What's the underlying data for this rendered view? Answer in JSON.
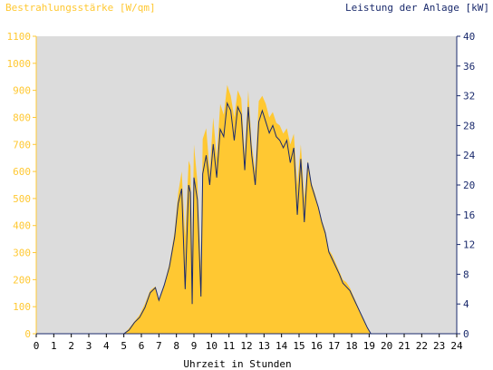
{
  "chart_data": {
    "type": "area",
    "left_axis_title": "Bestrahlungsstärke [W/qm]",
    "right_axis_title": "Leistung der Anlage [kW]",
    "xlabel": "Uhrzeit in Stunden",
    "x_ticks": [
      "0",
      "1",
      "2",
      "3",
      "4",
      "5",
      "6",
      "7",
      "8",
      "9",
      "10",
      "11",
      "12",
      "13",
      "14",
      "15",
      "16",
      "17",
      "18",
      "19",
      "20",
      "21",
      "22",
      "23",
      "24"
    ],
    "y_left_ticks": [
      "0",
      "100",
      "200",
      "300",
      "400",
      "500",
      "600",
      "700",
      "800",
      "900",
      "1000",
      "1100"
    ],
    "y_right_ticks": [
      "0",
      "4",
      "8",
      "12",
      "16",
      "20",
      "24",
      "28",
      "32",
      "36",
      "40"
    ],
    "xlim": [
      0,
      24
    ],
    "ylim_left": [
      0,
      1100
    ],
    "ylim_right": [
      0,
      40
    ],
    "grid": false,
    "colors": {
      "plot_background": "#dcdcdc",
      "irradiance_fill": "#ffc832",
      "power_line": "#1a2a6c",
      "left_axis_text": "#ffc832",
      "right_axis_text": "#1a2a6c",
      "x_axis_text": "#000000"
    },
    "series": [
      {
        "name": "Bestrahlungsstärke [W/qm]",
        "axis": "left",
        "style": "area",
        "x": [
          0,
          5.0,
          5.3,
          5.6,
          5.9,
          6.2,
          6.5,
          6.8,
          7.0,
          7.3,
          7.6,
          7.9,
          8.1,
          8.3,
          8.5,
          8.7,
          8.8,
          8.9,
          9.0,
          9.2,
          9.4,
          9.5,
          9.7,
          9.9,
          10.1,
          10.3,
          10.5,
          10.7,
          10.9,
          11.1,
          11.3,
          11.5,
          11.7,
          11.9,
          12.1,
          12.3,
          12.5,
          12.7,
          12.9,
          13.1,
          13.3,
          13.5,
          13.7,
          13.9,
          14.1,
          14.3,
          14.5,
          14.7,
          14.9,
          15.1,
          15.3,
          15.5,
          15.7,
          15.9,
          16.1,
          16.3,
          16.5,
          16.7,
          16.9,
          17.1,
          17.3,
          17.5,
          17.7,
          17.9,
          18.1,
          18.3,
          18.5,
          18.7,
          18.9,
          19.1,
          19.3,
          19.5,
          19.7,
          19.9,
          20.1,
          20.4,
          20.7,
          24
        ],
        "y": [
          0,
          0,
          20,
          45,
          70,
          110,
          160,
          175,
          120,
          180,
          260,
          380,
          520,
          600,
          360,
          640,
          620,
          280,
          700,
          560,
          230,
          720,
          760,
          600,
          800,
          650,
          850,
          810,
          920,
          880,
          800,
          900,
          870,
          660,
          900,
          700,
          600,
          860,
          880,
          850,
          800,
          820,
          780,
          770,
          740,
          760,
          700,
          740,
          550,
          700,
          500,
          640,
          560,
          520,
          470,
          420,
          380,
          310,
          290,
          260,
          230,
          200,
          190,
          170,
          140,
          110,
          80,
          50,
          20,
          0,
          0,
          0,
          0,
          0,
          0,
          0,
          0,
          0
        ]
      },
      {
        "name": "Leistung der Anlage [kW]",
        "axis": "right",
        "style": "line",
        "x": [
          0,
          5.0,
          5.3,
          5.6,
          5.9,
          6.2,
          6.5,
          6.8,
          7.0,
          7.3,
          7.6,
          7.9,
          8.1,
          8.3,
          8.5,
          8.7,
          8.8,
          8.9,
          9.0,
          9.2,
          9.4,
          9.5,
          9.7,
          9.9,
          10.1,
          10.3,
          10.5,
          10.7,
          10.9,
          11.1,
          11.3,
          11.5,
          11.7,
          11.9,
          12.1,
          12.3,
          12.5,
          12.7,
          12.9,
          13.1,
          13.3,
          13.5,
          13.7,
          13.9,
          14.1,
          14.3,
          14.5,
          14.7,
          14.9,
          15.1,
          15.3,
          15.5,
          15.7,
          15.9,
          16.1,
          16.3,
          16.5,
          16.7,
          16.9,
          17.1,
          17.3,
          17.5,
          17.7,
          17.9,
          18.1,
          18.3,
          18.5,
          18.7,
          18.9,
          19.1,
          19.3,
          19.5,
          19.7,
          19.9,
          20.1,
          20.4,
          20.7,
          24
        ],
        "y": [
          0,
          0,
          0.5,
          1.5,
          2.2,
          3.5,
          5.5,
          6.2,
          4.5,
          6.5,
          9,
          13,
          17.5,
          19.5,
          6,
          20,
          19,
          4,
          21,
          18,
          5,
          21.5,
          24,
          20,
          25.5,
          21,
          27.5,
          26.5,
          31,
          30,
          26,
          30.5,
          29.5,
          22,
          30.5,
          24,
          20,
          28.5,
          30,
          28.5,
          27,
          28,
          26.5,
          26,
          25,
          26,
          23,
          25,
          16,
          23.5,
          15,
          23,
          20,
          18.5,
          17,
          15,
          13.5,
          11,
          10,
          9,
          8,
          6.8,
          6.3,
          5.8,
          4.8,
          3.8,
          2.8,
          1.8,
          0.8,
          0,
          0,
          0,
          0,
          0,
          0,
          0,
          0,
          0
        ]
      }
    ]
  }
}
